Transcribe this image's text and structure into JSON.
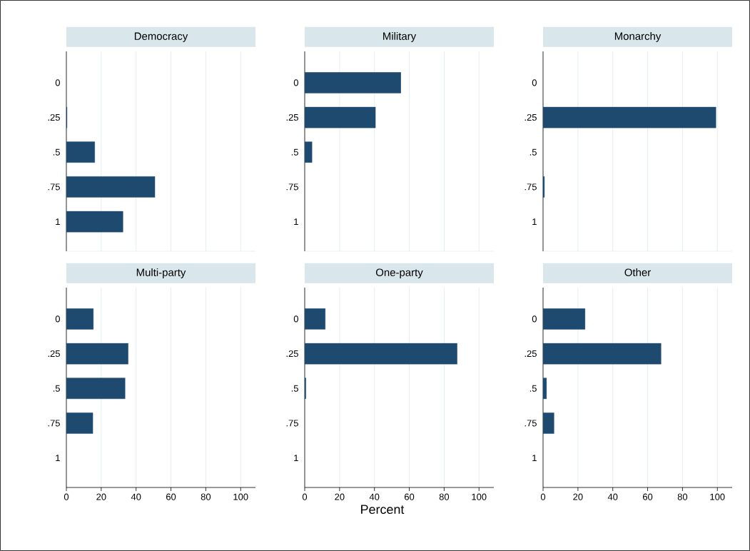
{
  "chart_data": [
    {
      "type": "bar",
      "orientation": "horizontal",
      "title": "Democracy",
      "categories": [
        "0",
        ".25",
        ".5",
        ".75",
        "1"
      ],
      "values": [
        null,
        0.4,
        16.3,
        50.8,
        32.5
      ],
      "color": "#1f4a70",
      "xlim": [
        0,
        108.5
      ],
      "xticks": [
        0,
        20,
        40,
        60,
        80,
        100
      ],
      "grid": "x",
      "tick_labels": "y"
    },
    {
      "type": "bar",
      "orientation": "horizontal",
      "title": "Military",
      "categories": [
        "0",
        ".25",
        ".5",
        ".75",
        "1"
      ],
      "values": [
        55.2,
        40.6,
        4.2,
        null,
        null
      ],
      "color": "#1f4a70",
      "xlim": [
        0,
        108.5
      ],
      "xticks": [
        0,
        20,
        40,
        60,
        80,
        100
      ],
      "grid": "x",
      "tick_labels": "y"
    },
    {
      "type": "bar",
      "orientation": "horizontal",
      "title": "Monarchy",
      "categories": [
        "0",
        ".25",
        ".5",
        ".75",
        "1"
      ],
      "values": [
        null,
        99.2,
        null,
        0.8,
        null
      ],
      "color": "#1f4a70",
      "xlim": [
        0,
        108.5
      ],
      "xticks": [
        0,
        20,
        40,
        60,
        80,
        100
      ],
      "grid": "x",
      "tick_labels": "y"
    },
    {
      "type": "bar",
      "orientation": "horizontal",
      "title": "Multi-party",
      "categories": [
        "0",
        ".25",
        ".5",
        ".75",
        "1"
      ],
      "values": [
        15.5,
        35.5,
        33.7,
        15.2,
        null
      ],
      "color": "#1f4a70",
      "xlim": [
        0,
        108.5
      ],
      "xticks": [
        0,
        20,
        40,
        60,
        80,
        100
      ],
      "grid": "x"
    },
    {
      "type": "bar",
      "orientation": "horizontal",
      "title": "One-party",
      "xlabel": "Percent",
      "categories": [
        "0",
        ".25",
        ".5",
        ".75",
        "1"
      ],
      "values": [
        11.8,
        87.5,
        0.7,
        null,
        null
      ],
      "color": "#1f4a70",
      "xlim": [
        0,
        108.5
      ],
      "xticks": [
        0,
        20,
        40,
        60,
        80,
        100
      ],
      "grid": "x"
    },
    {
      "type": "bar",
      "orientation": "horizontal",
      "title": "Other",
      "categories": [
        "0",
        ".25",
        ".5",
        ".75",
        "1"
      ],
      "values": [
        24.1,
        67.7,
        2.0,
        6.3,
        null
      ],
      "color": "#1f4a70",
      "xlim": [
        0,
        108.5
      ],
      "xticks": [
        0,
        20,
        40,
        60,
        80,
        100
      ],
      "grid": "x"
    }
  ]
}
